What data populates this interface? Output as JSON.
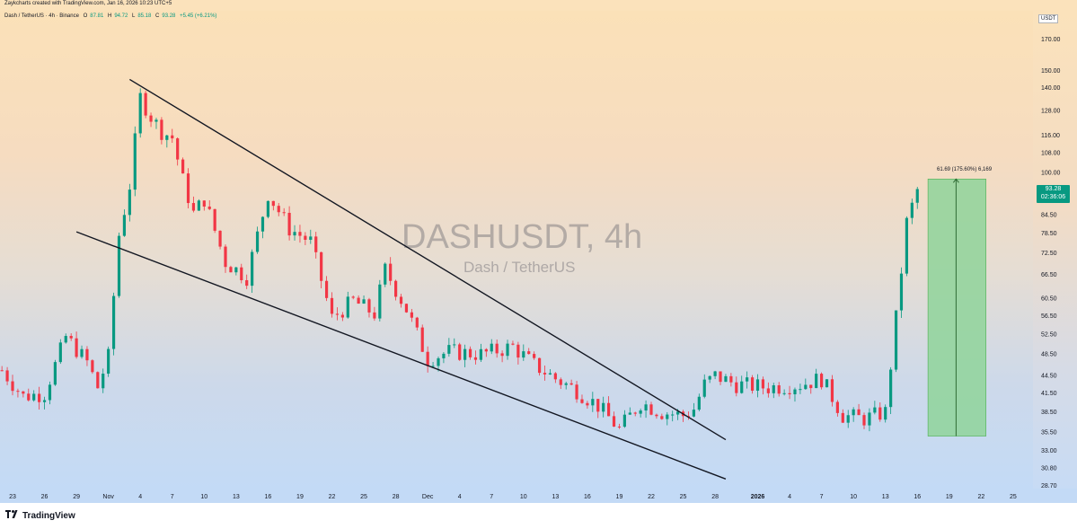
{
  "header": {
    "credit": "Zaykcharts created with TradingView.com, Jan 16, 2026 10:23 UTC+5"
  },
  "legend": {
    "symbol": "Dash / TetherUS · 4h · Binance",
    "open_label": "O",
    "open": "87.81",
    "high_label": "H",
    "high": "94.72",
    "low_label": "L",
    "low": "85.18",
    "close_label": "C",
    "close": "93.28",
    "change": "+5.45 (+6.21%)"
  },
  "watermark": {
    "title": "DASHUSDT, 4h",
    "subtitle": "Dash / TetherUS"
  },
  "currency": "USDT",
  "last_price": {
    "price": "93.28",
    "countdown": "02:36:06",
    "color": "#089981"
  },
  "measure_label": "61.69 (175.60%) 6,169",
  "branding": {
    "logo_text": "TradingView"
  },
  "colors": {
    "up": "#089981",
    "down": "#f23645",
    "trendline": "#131722",
    "measure_fill": "#8fd39a"
  },
  "chart_data": {
    "type": "candlestick",
    "y_scale": "log",
    "ylim": [
      28.7,
      185
    ],
    "y_ticks": [
      "170.00",
      "150.00",
      "140.00",
      "128.00",
      "116.00",
      "108.00",
      "100.00",
      "84.50",
      "78.50",
      "72.50",
      "66.50",
      "60.50",
      "56.50",
      "52.50",
      "48.50",
      "44.50",
      "41.50",
      "38.50",
      "35.50",
      "33.00",
      "30.80",
      "28.70"
    ],
    "x_ticks": [
      "23",
      "26",
      "29",
      "Nov",
      "4",
      "7",
      "10",
      "13",
      "16",
      "19",
      "22",
      "25",
      "28",
      "Dec",
      "4",
      "7",
      "10",
      "13",
      "16",
      "19",
      "22",
      "25",
      "28",
      "2026",
      "4",
      "7",
      "10",
      "13",
      "16",
      "19",
      "22",
      "25"
    ],
    "x_ticks_bold": [
      "2026"
    ],
    "price_path": [
      {
        "date": "Oct 22",
        "price": 45.5
      },
      {
        "date": "Oct 24",
        "price": 41.0
      },
      {
        "date": "Oct 26",
        "price": 41.5
      },
      {
        "date": "Oct 28",
        "price": 52.0
      },
      {
        "date": "Oct 30",
        "price": 47.0
      },
      {
        "date": "Oct 31",
        "price": 42.5
      },
      {
        "date": "Nov 1",
        "price": 48.0
      },
      {
        "date": "Nov 2",
        "price": 78.0
      },
      {
        "date": "Nov 3",
        "price": 95.0
      },
      {
        "date": "Nov 4",
        "price": 135.0
      },
      {
        "date": "Nov 5",
        "price": 125.0
      },
      {
        "date": "Nov 6",
        "price": 118.0
      },
      {
        "date": "Nov 7",
        "price": 115.0
      },
      {
        "date": "Nov 8",
        "price": 97.0
      },
      {
        "date": "Nov 9",
        "price": 85.0
      },
      {
        "date": "Nov 10",
        "price": 90.0
      },
      {
        "date": "Nov 12",
        "price": 70.0
      },
      {
        "date": "Nov 14",
        "price": 66.0
      },
      {
        "date": "Nov 16",
        "price": 92.0
      },
      {
        "date": "Nov 18",
        "price": 80.0
      },
      {
        "date": "Nov 20",
        "price": 76.0
      },
      {
        "date": "Nov 22",
        "price": 56.0
      },
      {
        "date": "Nov 24",
        "price": 60.0
      },
      {
        "date": "Nov 26",
        "price": 57.0
      },
      {
        "date": "Nov 27",
        "price": 68.0
      },
      {
        "date": "Nov 29",
        "price": 58.0
      },
      {
        "date": "Dec 1",
        "price": 47.5
      },
      {
        "date": "Dec 3",
        "price": 49.0
      },
      {
        "date": "Dec 6",
        "price": 48.5
      },
      {
        "date": "Dec 9",
        "price": 50.0
      },
      {
        "date": "Dec 11",
        "price": 46.5
      },
      {
        "date": "Dec 13",
        "price": 44.0
      },
      {
        "date": "Dec 15",
        "price": 42.0
      },
      {
        "date": "Dec 17",
        "price": 39.5
      },
      {
        "date": "Dec 19",
        "price": 36.0
      },
      {
        "date": "Dec 21",
        "price": 40.0
      },
      {
        "date": "Dec 23",
        "price": 38.5
      },
      {
        "date": "Dec 25",
        "price": 38.0
      },
      {
        "date": "Dec 26",
        "price": 39.0
      },
      {
        "date": "Dec 27",
        "price": 43.0
      },
      {
        "date": "Dec 28",
        "price": 44.5
      },
      {
        "date": "Dec 30",
        "price": 43.0
      },
      {
        "date": "Jan 2",
        "price": 42.5
      },
      {
        "date": "Jan 5",
        "price": 43.0
      },
      {
        "date": "Jan 7",
        "price": 44.0
      },
      {
        "date": "Jan 9",
        "price": 38.0
      },
      {
        "date": "Jan 11",
        "price": 37.5
      },
      {
        "date": "Jan 13",
        "price": 38.5
      },
      {
        "date": "Jan 14",
        "price": 56.0
      },
      {
        "date": "Jan 15",
        "price": 82.0
      },
      {
        "date": "Jan 16",
        "price": 93.28
      }
    ],
    "trendlines": [
      {
        "start": {
          "date": "Nov 3",
          "price": 145.0
        },
        "end": {
          "date": "Dec 29",
          "price": 34.5
        }
      },
      {
        "start": {
          "date": "Oct 29",
          "price": 79.0
        },
        "end": {
          "date": "Dec 29",
          "price": 29.5
        }
      }
    ],
    "measure": {
      "from": {
        "date": "Jan 17",
        "price": 35.0
      },
      "to": {
        "date": "Jan 20",
        "price": 97.5
      },
      "label": "61.69 (175.60%) 6,169"
    }
  }
}
